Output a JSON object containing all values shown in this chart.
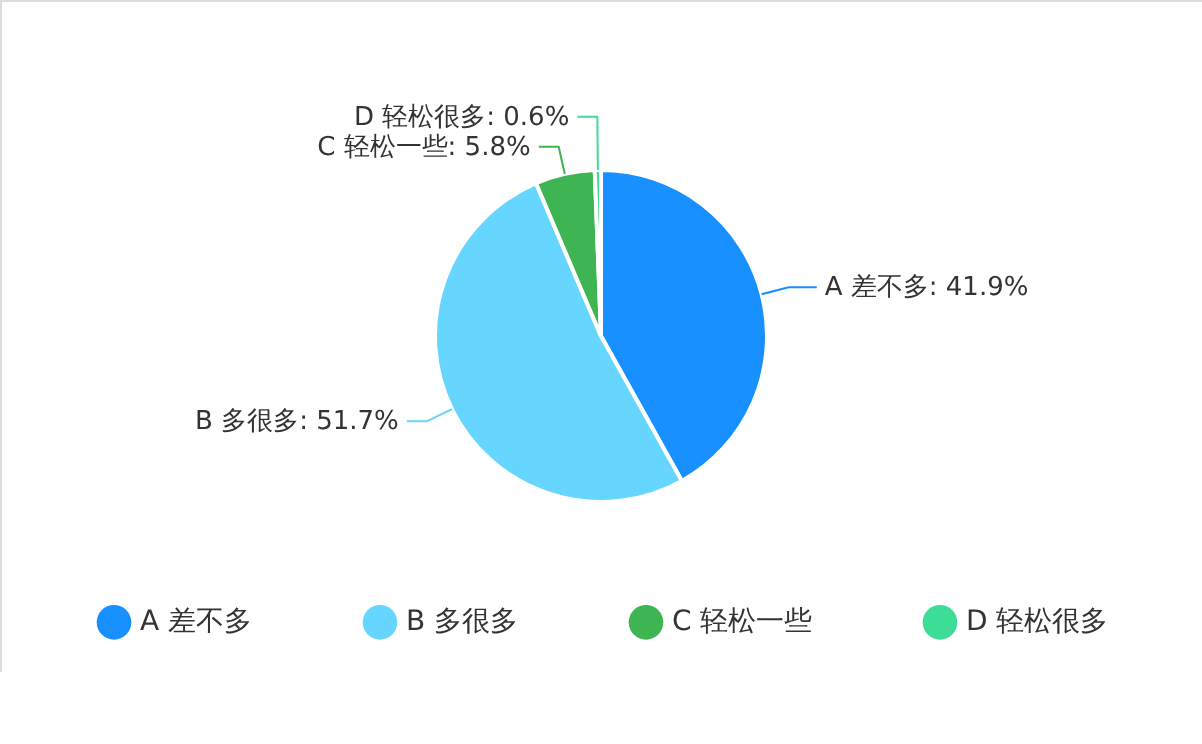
{
  "chart_data": {
    "type": "pie",
    "categories": [
      "A  差不多",
      "B  多很多",
      "C  轻松一些",
      "D  轻松很多"
    ],
    "values": [
      41.9,
      51.7,
      5.8,
      0.6
    ],
    "colors": [
      "#1890ff",
      "#66d6ff",
      "#3fb452",
      "#3ddc97"
    ],
    "value_labels": [
      "A  差不多: 41.9%",
      "B  多很多: 51.7%",
      "C  轻松一些: 5.8%",
      "D  轻松很多: 0.6%"
    ],
    "legend": "bottom"
  }
}
